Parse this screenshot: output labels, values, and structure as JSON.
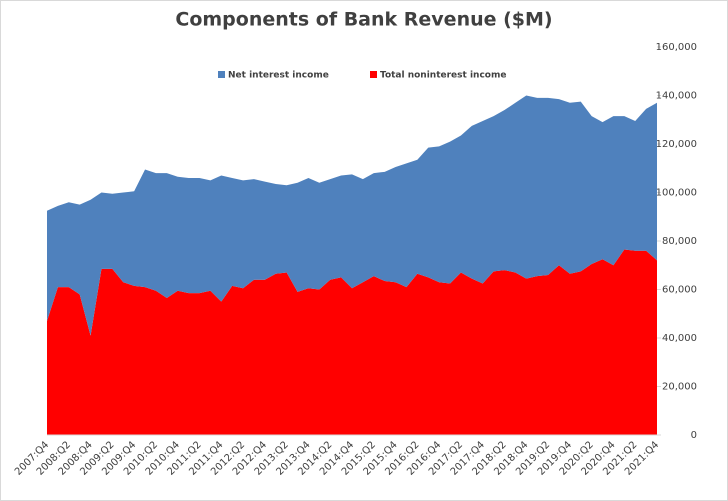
{
  "chart_data": {
    "type": "stacked_area",
    "title": "Components of Bank Revenue ($M)",
    "categories": [
      "2007:Q4",
      null,
      "2008:Q2",
      null,
      "2008:Q4",
      null,
      "2009:Q2",
      null,
      "2009:Q4",
      null,
      "2010:Q2",
      null,
      "2010:Q4",
      null,
      "2011:Q2",
      null,
      "2011:Q4",
      null,
      "2012:Q2",
      null,
      "2012:Q4",
      null,
      "2013:Q2",
      null,
      "2013:Q4",
      null,
      "2014:Q2",
      null,
      "2014:Q4",
      null,
      "2015:Q2",
      null,
      "2015:Q4",
      null,
      "2016:Q2",
      null,
      "2016:Q4",
      null,
      "2017:Q2",
      null,
      "2017:Q4",
      null,
      "2018:Q2",
      null,
      "2018:Q4",
      null,
      "2019:Q2",
      null,
      "2019:Q4",
      null,
      "2020:Q2",
      null,
      "2020:Q4",
      null,
      "2021:Q2",
      null,
      "2021:Q4"
    ],
    "series": [
      {
        "name": "Net interest income",
        "color": "#4f81bd",
        "values": [
          45500,
          33500,
          35000,
          37000,
          56000,
          31500,
          31000,
          37000,
          39000,
          48500,
          48500,
          51500,
          47000,
          47500,
          47500,
          45500,
          52000,
          44500,
          44500,
          41500,
          40500,
          37000,
          36000,
          45000,
          45500,
          44000,
          41500,
          42000,
          47000,
          42500,
          42500,
          45000,
          47500,
          51000,
          47000,
          53500,
          56000,
          58500,
          56500,
          63000,
          67000,
          64000,
          66000,
          70000,
          75500,
          73500,
          73000,
          68500,
          70500,
          70000,
          61000,
          56500,
          61500,
          55000,
          53500,
          58500,
          65000
        ]
      },
      {
        "name": "Total noninterest income",
        "color": "#ff0000",
        "values": [
          47000,
          61000,
          61000,
          58000,
          41000,
          68500,
          68500,
          63000,
          61500,
          61000,
          59500,
          56500,
          59500,
          58500,
          58500,
          59500,
          55000,
          61500,
          60500,
          64000,
          64000,
          66500,
          67000,
          59000,
          60500,
          60000,
          64000,
          65000,
          60500,
          63000,
          65500,
          63500,
          63000,
          61000,
          66500,
          65000,
          63000,
          62500,
          67000,
          64500,
          62500,
          67500,
          68000,
          67000,
          64500,
          65500,
          66000,
          70000,
          66500,
          67500,
          70500,
          72500,
          70000,
          76500,
          76000,
          76000,
          72000
        ]
      }
    ],
    "ylim": [
      0,
      160000
    ],
    "yticks": [
      0,
      {
        "value": 20000,
        "label": "20,000"
      },
      {
        "value": 40000,
        "label": "40,000"
      },
      {
        "value": 60000,
        "label": "60,000"
      },
      {
        "value": 80000,
        "label": "80,000"
      },
      {
        "value": 100000,
        "label": "100,000"
      },
      {
        "value": 120000,
        "label": "120,000"
      },
      {
        "value": 140000,
        "label": "140,000"
      },
      {
        "value": 160000,
        "label": "160,000"
      }
    ],
    "legend": "top"
  }
}
